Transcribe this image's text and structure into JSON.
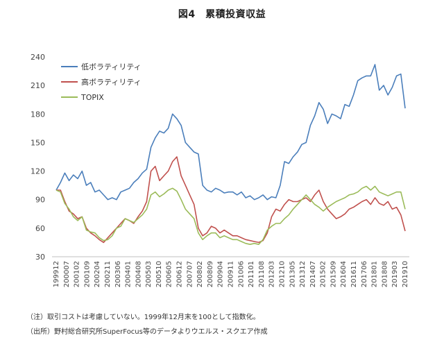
{
  "title": "図4　累積投資収益",
  "notes": {
    "note1": "（注）取引コストは考慮していない。1999年12月末を100として指数化。",
    "note2": "（出所）野村総合研究所SuperFocus等のデータよりウエルス・スクエア作成"
  },
  "chart_data": {
    "type": "line",
    "title": "図4　累積投資収益",
    "xlabel": "",
    "ylabel": "",
    "ylim": [
      30,
      240
    ],
    "yticks": [
      30,
      60,
      90,
      120,
      150,
      180,
      210,
      240
    ],
    "grid": false,
    "legend_placement": "top-left",
    "x_tick_labels": [
      "199912",
      "200007",
      "200102",
      "200109",
      "200204",
      "200211",
      "200306",
      "200401",
      "200408",
      "200503",
      "200510",
      "200605",
      "200612",
      "200707",
      "200802",
      "200809",
      "200904",
      "200911",
      "201006",
      "201101",
      "201108",
      "201203",
      "201210",
      "201305",
      "201312",
      "201407",
      "201502",
      "201509",
      "201604",
      "201611",
      "201706",
      "201801",
      "201808",
      "201903",
      "201910"
    ],
    "series": [
      {
        "name": "低ボラティリティ",
        "color": "#4a7ebb",
        "values": [
          100,
          108,
          118,
          110,
          116,
          112,
          120,
          105,
          108,
          98,
          100,
          95,
          90,
          92,
          90,
          98,
          100,
          102,
          108,
          112,
          118,
          122,
          145,
          155,
          162,
          160,
          165,
          180,
          175,
          168,
          150,
          145,
          140,
          138,
          105,
          100,
          98,
          102,
          100,
          97,
          98,
          98,
          95,
          98,
          92,
          94,
          90,
          92,
          95,
          90,
          93,
          92,
          105,
          130,
          128,
          135,
          140,
          148,
          150,
          168,
          178,
          192,
          185,
          170,
          180,
          178,
          175,
          190,
          188,
          200,
          215,
          218,
          220,
          220,
          232,
          205,
          210,
          200,
          208,
          220,
          222,
          186
        ]
      },
      {
        "name": "高ボラティリティ",
        "color": "#c0504d",
        "values": [
          100,
          100,
          88,
          78,
          75,
          70,
          72,
          60,
          55,
          52,
          48,
          45,
          50,
          55,
          60,
          65,
          70,
          68,
          65,
          72,
          78,
          88,
          120,
          125,
          110,
          115,
          120,
          130,
          135,
          115,
          105,
          95,
          85,
          60,
          52,
          55,
          62,
          60,
          55,
          58,
          55,
          52,
          52,
          50,
          48,
          47,
          46,
          45,
          47,
          55,
          72,
          80,
          78,
          85,
          90,
          88,
          88,
          90,
          92,
          88,
          95,
          100,
          88,
          80,
          75,
          70,
          72,
          75,
          80,
          82,
          85,
          88,
          90,
          85,
          92,
          86,
          84,
          88,
          80,
          82,
          74,
          57
        ]
      },
      {
        "name": "TOPIX",
        "color": "#9bbb59",
        "values": [
          100,
          98,
          86,
          80,
          72,
          68,
          72,
          58,
          56,
          55,
          50,
          47,
          48,
          52,
          60,
          62,
          70,
          68,
          66,
          70,
          74,
          80,
          95,
          98,
          93,
          96,
          100,
          102,
          99,
          90,
          80,
          75,
          70,
          55,
          48,
          52,
          55,
          55,
          50,
          52,
          50,
          48,
          48,
          46,
          44,
          43,
          44,
          43,
          48,
          58,
          62,
          65,
          65,
          70,
          74,
          80,
          85,
          90,
          95,
          90,
          85,
          82,
          78,
          82,
          85,
          88,
          90,
          92,
          95,
          96,
          98,
          102,
          104,
          100,
          104,
          98,
          96,
          94,
          96,
          98,
          98,
          80
        ]
      }
    ]
  }
}
